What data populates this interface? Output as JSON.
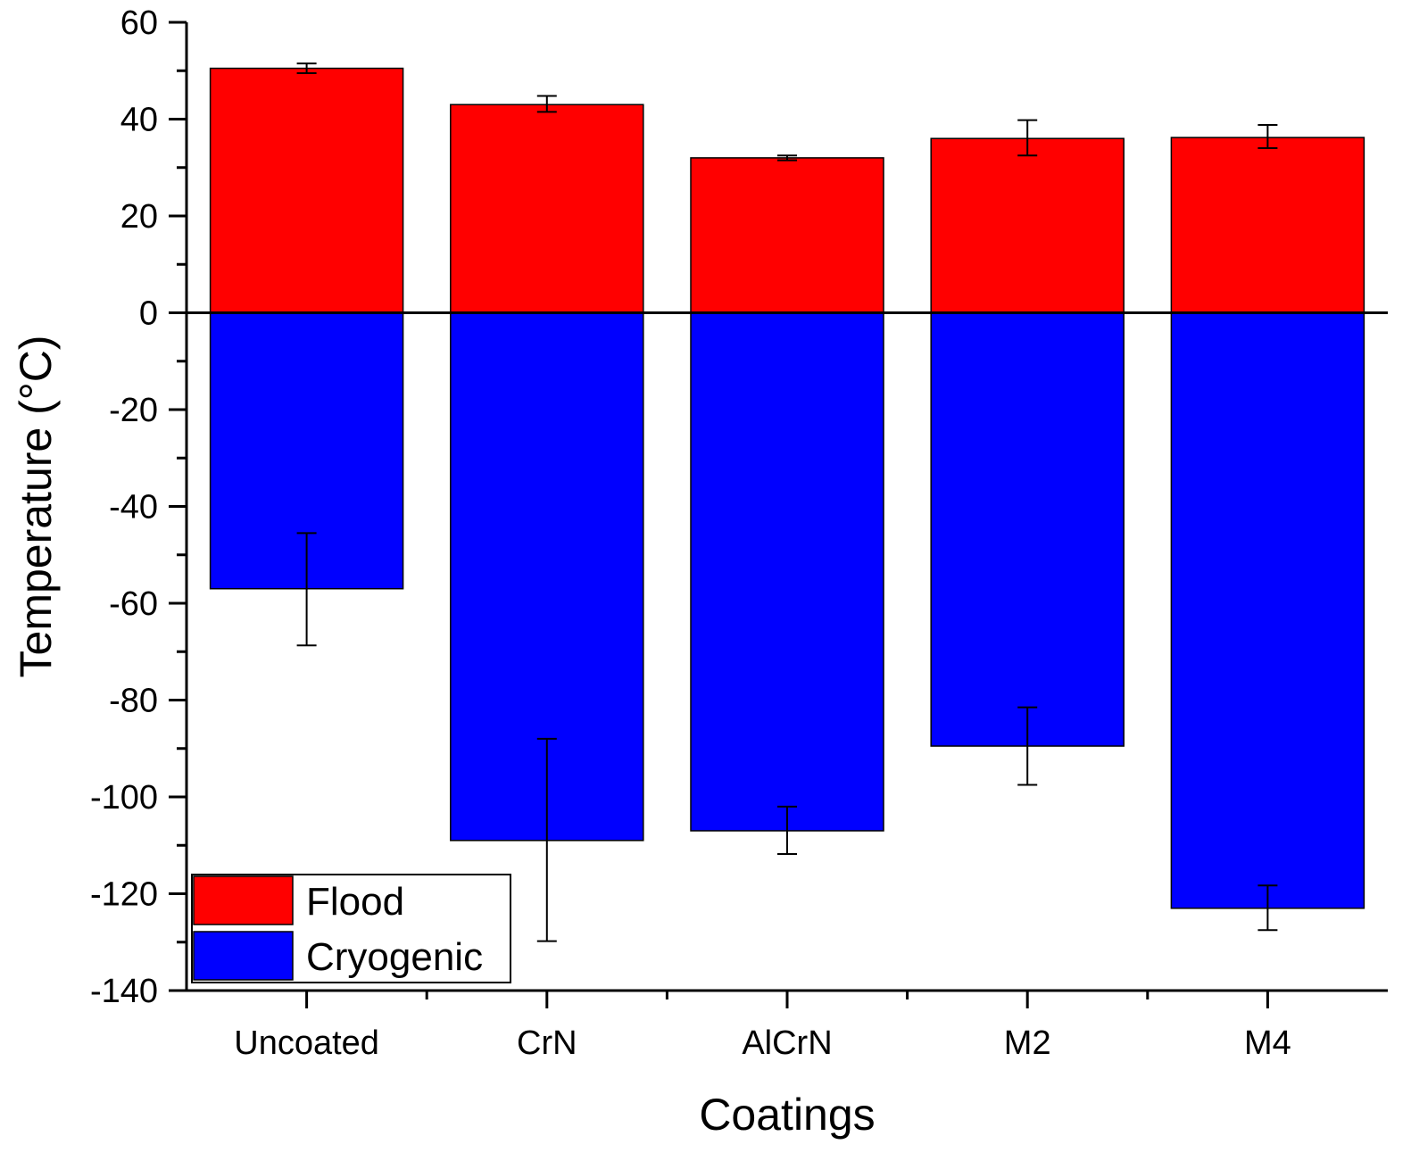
{
  "chart_data": {
    "type": "bar",
    "title": "",
    "xlabel": "Coatings",
    "ylabel": "Temperature (°C)",
    "ylim": [
      -140,
      60
    ],
    "yticks": [
      60,
      40,
      20,
      0,
      -20,
      -40,
      -60,
      -80,
      -100,
      -120,
      -140
    ],
    "categories": [
      "Uncoated",
      "CrN",
      "AlCrN",
      "M2",
      "M4"
    ],
    "series": [
      {
        "name": "Flood",
        "color": "#ff0000",
        "values": [
          50.5,
          43,
          32,
          36,
          36.2
        ],
        "err_low": [
          49.5,
          41.5,
          31.5,
          32.5,
          34
        ],
        "err_high": [
          51.5,
          44.8,
          32.5,
          39.8,
          38.8
        ]
      },
      {
        "name": "Cryogenic",
        "color": "#0000ff",
        "values": [
          -57,
          -109,
          -107,
          -89.5,
          -123
        ],
        "err_low": [
          -68.7,
          -129.8,
          -111.8,
          -97.5,
          -127.5
        ],
        "err_high": [
          -45.5,
          -88,
          -102,
          -81.5,
          -118.3
        ]
      }
    ],
    "legend": {
      "position": "bottom-left",
      "entries": [
        "Flood",
        "Cryogenic"
      ]
    }
  }
}
